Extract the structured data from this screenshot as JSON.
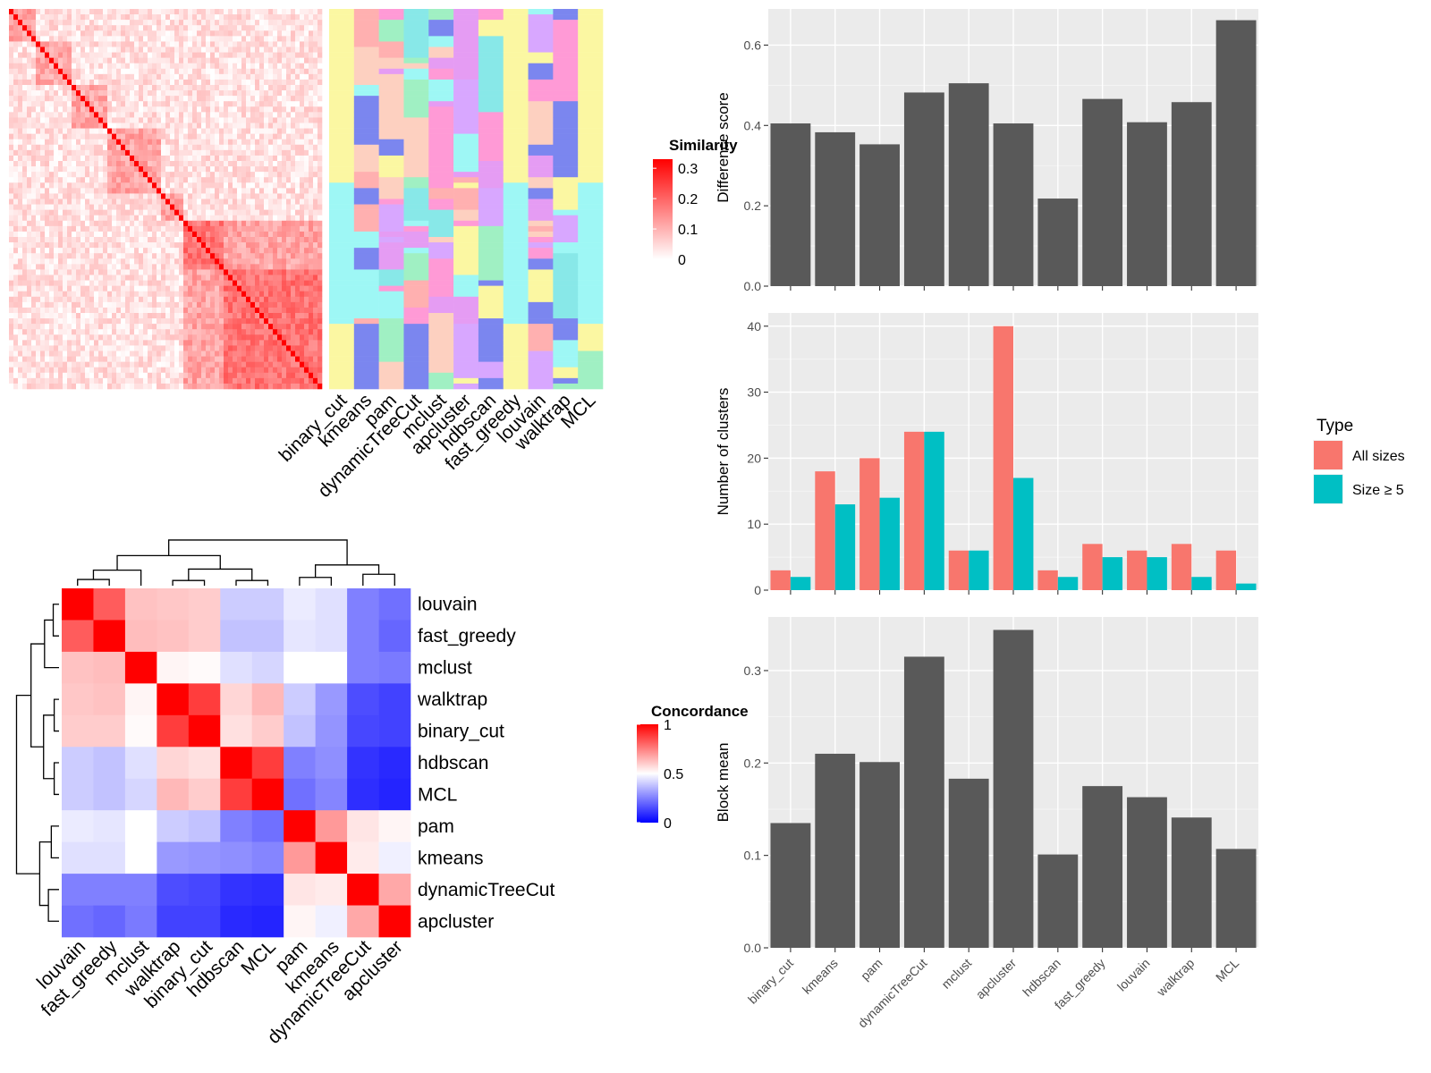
{
  "chart_data": [
    {
      "type": "heatmap",
      "name": "similarity-heatmap",
      "legend_title": "Similarity",
      "legend_ticks": [
        0,
        0.1,
        0.2,
        0.3
      ],
      "color_low": "#ffffff",
      "color_high": "#ff0000",
      "block_boundaries_fraction": [
        0.0,
        0.08,
        0.2,
        0.32,
        0.48,
        0.56,
        0.68,
        1.0
      ]
    },
    {
      "type": "heatmap",
      "name": "cluster-assignment-heatmap",
      "columns": [
        "binary_cut",
        "kmeans",
        "pam",
        "dynamicTreeCut",
        "mclust",
        "apcluster",
        "hdbscan",
        "fast_greedy",
        "louvain",
        "walktrap",
        "MCL"
      ],
      "palette": [
        "#fbf7a2",
        "#ff9ad6",
        "#9ef7f5",
        "#7b86ef",
        "#a0f0c3",
        "#fdd0c0",
        "#d8a7ff",
        "#ffb0b0",
        "#88e8e8",
        "#e59cf3"
      ]
    },
    {
      "type": "heatmap",
      "name": "concordance-heatmap",
      "legend_title": "Concordance",
      "legend_ticks": [
        0,
        0.5,
        1
      ],
      "color_low": "#0000ff",
      "color_mid": "#ffffff",
      "color_high": "#ff0000",
      "rows": [
        "louvain",
        "fast_greedy",
        "mclust",
        "walktrap",
        "binary_cut",
        "hdbscan",
        "MCL",
        "pam",
        "kmeans",
        "dynamicTreeCut",
        "apcluster"
      ],
      "columns": [
        "louvain",
        "fast_greedy",
        "mclust",
        "walktrap",
        "binary_cut",
        "hdbscan",
        "MCL",
        "pam",
        "kmeans",
        "dynamicTreeCut",
        "apcluster"
      ],
      "values": [
        [
          1.0,
          0.82,
          0.62,
          0.61,
          0.6,
          0.4,
          0.4,
          0.46,
          0.44,
          0.25,
          0.22
        ],
        [
          0.82,
          1.0,
          0.63,
          0.62,
          0.6,
          0.38,
          0.38,
          0.45,
          0.44,
          0.25,
          0.2
        ],
        [
          0.62,
          0.63,
          1.0,
          0.52,
          0.51,
          0.44,
          0.42,
          0.5,
          0.5,
          0.25,
          0.24
        ],
        [
          0.61,
          0.62,
          0.52,
          1.0,
          0.88,
          0.58,
          0.64,
          0.4,
          0.3,
          0.15,
          0.13
        ],
        [
          0.6,
          0.6,
          0.51,
          0.88,
          1.0,
          0.56,
          0.6,
          0.38,
          0.29,
          0.14,
          0.13
        ],
        [
          0.4,
          0.38,
          0.44,
          0.58,
          0.56,
          1.0,
          0.88,
          0.25,
          0.28,
          0.1,
          0.08
        ],
        [
          0.4,
          0.38,
          0.42,
          0.64,
          0.6,
          0.88,
          1.0,
          0.22,
          0.26,
          0.09,
          0.07
        ],
        [
          0.46,
          0.45,
          0.5,
          0.4,
          0.38,
          0.25,
          0.22,
          1.0,
          0.7,
          0.55,
          0.52
        ],
        [
          0.44,
          0.44,
          0.5,
          0.3,
          0.29,
          0.28,
          0.26,
          0.7,
          1.0,
          0.54,
          0.47
        ],
        [
          0.25,
          0.25,
          0.25,
          0.15,
          0.14,
          0.1,
          0.09,
          0.55,
          0.54,
          1.0,
          0.67
        ],
        [
          0.22,
          0.2,
          0.24,
          0.13,
          0.13,
          0.08,
          0.07,
          0.52,
          0.47,
          0.67,
          1.0
        ]
      ],
      "dendrogram": "hierarchical clustering of methods"
    },
    {
      "type": "bar",
      "name": "difference-score",
      "categories": [
        "binary_cut",
        "kmeans",
        "pam",
        "dynamicTreeCut",
        "mclust",
        "apcluster",
        "hdbscan",
        "fast_greedy",
        "louvain",
        "walktrap",
        "MCL"
      ],
      "values": [
        0.405,
        0.383,
        0.353,
        0.482,
        0.505,
        0.405,
        0.218,
        0.466,
        0.408,
        0.458,
        0.662
      ],
      "xlabel": "",
      "ylabel": "Difference score",
      "ylim": [
        0,
        0.69
      ],
      "yticks": [
        0.0,
        0.2,
        0.4,
        0.6
      ],
      "ytick_labels": [
        "0.0",
        "0.2",
        "0.4",
        "0.6"
      ],
      "grid": true,
      "bar_color": "#595959",
      "panel_color": "#ebebeb"
    },
    {
      "type": "bar",
      "name": "number-of-clusters",
      "categories": [
        "binary_cut",
        "kmeans",
        "pam",
        "dynamicTreeCut",
        "mclust",
        "apcluster",
        "hdbscan",
        "fast_greedy",
        "louvain",
        "walktrap",
        "MCL"
      ],
      "series": [
        {
          "name": "All sizes",
          "color": "#f8766d",
          "values": [
            3,
            18,
            20,
            24,
            6,
            40,
            3,
            7,
            6,
            7,
            6
          ]
        },
        {
          "name": "Size ≥ 5",
          "color": "#00bfc4",
          "values": [
            2,
            13,
            14,
            24,
            6,
            17,
            2,
            5,
            5,
            2,
            1
          ]
        }
      ],
      "xlabel": "",
      "ylabel": "Number of clusters",
      "ylim": [
        0,
        42
      ],
      "yticks": [
        0,
        10,
        20,
        30,
        40
      ],
      "legend_title": "Type",
      "legend_position": "right",
      "grid": true,
      "panel_color": "#ebebeb"
    },
    {
      "type": "bar",
      "name": "block-mean",
      "categories": [
        "binary_cut",
        "kmeans",
        "pam",
        "dynamicTreeCut",
        "mclust",
        "apcluster",
        "hdbscan",
        "fast_greedy",
        "louvain",
        "walktrap",
        "MCL"
      ],
      "values": [
        0.135,
        0.21,
        0.201,
        0.315,
        0.183,
        0.344,
        0.101,
        0.175,
        0.163,
        0.141,
        0.107
      ],
      "xlabel": "",
      "ylabel": "Block mean",
      "ylim": [
        0,
        0.358
      ],
      "yticks": [
        0.0,
        0.1,
        0.2,
        0.3
      ],
      "ytick_labels": [
        "0.0",
        "0.1",
        "0.2",
        "0.3"
      ],
      "grid": true,
      "bar_color": "#595959",
      "panel_color": "#ebebeb"
    }
  ]
}
